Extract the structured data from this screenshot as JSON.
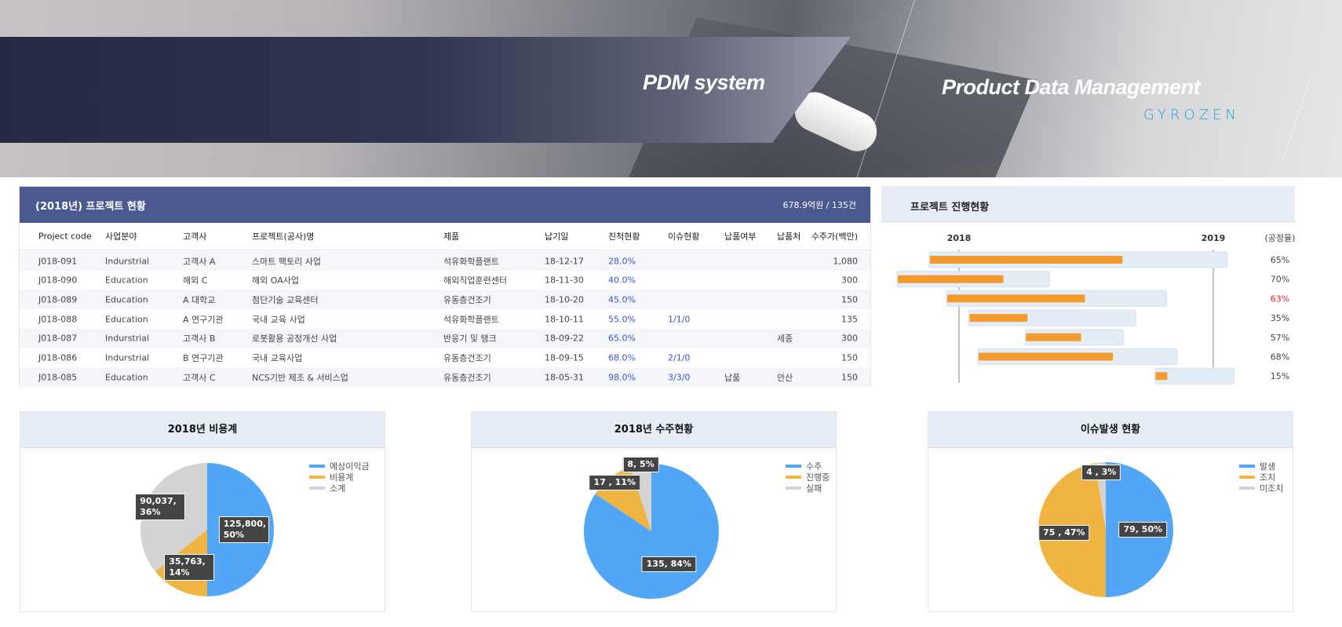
{
  "banner": {
    "title": "PDM system",
    "subtitle": "Product Data Management",
    "logo": "GYROZEN"
  },
  "table": {
    "title": "(2018년) 프로젝트 현황",
    "summary": "678.9억원 / 135건",
    "columns": [
      "Project code",
      "사업분야",
      "고객사",
      "프로젝트(공사)명",
      "제품",
      "납기일",
      "진척현황",
      "이슈현황",
      "납품여부",
      "납품처",
      "수주가(백만)"
    ],
    "rows": [
      [
        "J018-091",
        "Indurstrial",
        "고객사 A",
        "스마트 팩토리 사업",
        "석유화학플랜트",
        "18-12-17",
        "28.0%",
        "",
        "",
        "",
        "1,080"
      ],
      [
        "J018-090",
        "Education",
        "해외 C",
        "해외 OA사업",
        "해외직업훈련센터",
        "18-11-30",
        "40.0%",
        "",
        "",
        "",
        "300"
      ],
      [
        "J018-089",
        "Education",
        "A 대학교",
        "첨단기술 교육센터",
        "유동층건조기",
        "18-10-20",
        "45.0%",
        "",
        "",
        "",
        "150"
      ],
      [
        "J018-088",
        "Education",
        "A 연구기관",
        "국내 교육 사업",
        "석유화학플랜트",
        "18-10-11",
        "55.0%",
        "1/1/0",
        "",
        "",
        "135"
      ],
      [
        "J018-087",
        "Indurstrial",
        "고객사 B",
        "로봇활용 공정개선 사업",
        "반응기 및 탱크",
        "18-09-22",
        "65.0%",
        "",
        "",
        "세종",
        "300"
      ],
      [
        "J018-086",
        "Indurstrial",
        "B 연구기관",
        "국내 교육사업",
        "유동층건조기",
        "18-09-15",
        "68.0%",
        "2/1/0",
        "",
        "",
        "150"
      ],
      [
        "J018-085",
        "Education",
        "고객사 C",
        "NCS기반 제조 & 서비스업",
        "유동층건조기",
        "18-05-31",
        "98.0%",
        "3/3/0",
        "납품",
        "안산",
        "150"
      ]
    ]
  },
  "gantt": {
    "title": "프로젝트 진행현황",
    "years": [
      "2018",
      "2019"
    ],
    "rate_label": "(공정율)",
    "colors": {
      "bar": "#f59a2f",
      "track": "#e4ecf6",
      "warn": "#e02020"
    },
    "rows": [
      {
        "start": "2017-11-19",
        "end": "2019-01-21",
        "progress": 65,
        "label": "65%"
      },
      {
        "start": "2017-10-04",
        "end": "2018-05-11",
        "progress": 70,
        "label": "70%"
      },
      {
        "start": "2017-12-14",
        "end": "2018-10-26",
        "progress": 63,
        "label": "63%",
        "warn": true
      },
      {
        "start": "2018-01-15",
        "end": "2018-09-12",
        "progress": 35,
        "label": "35%"
      },
      {
        "start": "2018-04-06",
        "end": "2018-08-25",
        "progress": 57,
        "label": "57%"
      },
      {
        "start": "2018-01-28",
        "end": "2018-11-10",
        "progress": 68,
        "label": "68%"
      },
      {
        "start": "2018-10-09",
        "end": "2019-01-31",
        "progress": 15,
        "label": "15%"
      }
    ]
  },
  "chart_data": [
    {
      "type": "pie",
      "title": "2018년 비용계",
      "labels": [
        "예상이익금",
        "비용계",
        "소계"
      ],
      "values": [
        125800,
        35763,
        90037
      ],
      "data_labels": [
        "125,800, 50%",
        "35,763, 14%",
        "90,037, 36%"
      ],
      "colors": [
        "#52a6f8",
        "#efb441",
        "#d3d3d3"
      ],
      "legend": "top-right"
    },
    {
      "type": "pie",
      "title": "2018년 수주현황",
      "labels": [
        "수주",
        "진행중",
        "실패"
      ],
      "values": [
        135,
        17,
        8
      ],
      "data_labels": [
        "135, 84%",
        "17 , 11%",
        "8, 5%"
      ],
      "colors": [
        "#52a6f8",
        "#efb441",
        "#d3d3d3"
      ],
      "legend": "top-right"
    },
    {
      "type": "pie",
      "title": "이슈발생 현황",
      "labels": [
        "발생",
        "조치",
        "미조치"
      ],
      "values": [
        79,
        75,
        4
      ],
      "data_labels": [
        "79, 50%",
        "75 , 47%",
        "4 , 3%"
      ],
      "colors": [
        "#52a6f8",
        "#efb441",
        "#d3d3d3"
      ],
      "legend": "top-right"
    }
  ]
}
